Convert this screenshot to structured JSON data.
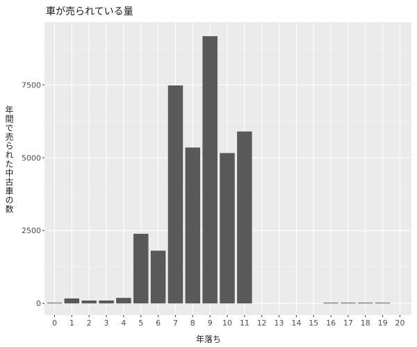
{
  "chart_data": {
    "type": "bar",
    "title": "車が売られている量",
    "xlabel": "年落ち",
    "ylabel": "年間で売られた中古車の数",
    "categories": [
      "0",
      "1",
      "2",
      "3",
      "4",
      "5",
      "6",
      "7",
      "8",
      "9",
      "10",
      "11",
      "12",
      "13",
      "14",
      "15",
      "16",
      "17",
      "18",
      "19",
      "20"
    ],
    "values": [
      20,
      170,
      100,
      100,
      190,
      2390,
      1810,
      7480,
      5350,
      9170,
      5160,
      5900,
      0,
      0,
      0,
      0,
      15,
      15,
      15,
      15,
      0
    ],
    "yticks": [
      0,
      2500,
      5000,
      7500
    ],
    "ytick_labels": [
      "0",
      "2500",
      "5000",
      "7500"
    ],
    "ylim": [
      -400,
      9650
    ],
    "grid": true,
    "colors": {
      "bar": "#595959",
      "panel": "#ebebeb",
      "grid_major": "#ffffff",
      "grid_minor": "#f5f5f5"
    }
  }
}
